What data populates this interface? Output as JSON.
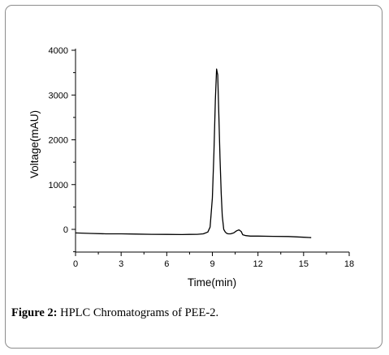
{
  "figure": {
    "caption_label": "Figure 2:",
    "caption_text": " HPLC Chromatograms of PEE-2."
  },
  "chart_data": {
    "type": "line",
    "xlabel": "Time(min)",
    "ylabel": "Voltage(mAU)",
    "xlim": [
      0,
      18
    ],
    "ylim": [
      -500,
      4000
    ],
    "x_ticks": [
      0,
      3,
      6,
      9,
      12,
      15,
      18
    ],
    "y_ticks": [
      0,
      1000,
      2000,
      3000,
      4000
    ],
    "grid": false,
    "series": [
      {
        "color": "#000000",
        "x": [
          0,
          1,
          2,
          3,
          4,
          5,
          6,
          7,
          7.5,
          8,
          8.4,
          8.7,
          8.85,
          9.0,
          9.1,
          9.2,
          9.28,
          9.35,
          9.42,
          9.5,
          9.58,
          9.65,
          9.75,
          9.85,
          9.95,
          10.05,
          10.2,
          10.4,
          10.6,
          10.75,
          10.9,
          11.0,
          11.2,
          11.5,
          12,
          13,
          14,
          15,
          15.5
        ],
        "y": [
          -80,
          -90,
          -100,
          -100,
          -105,
          -110,
          -112,
          -115,
          -112,
          -110,
          -100,
          -60,
          50,
          700,
          1700,
          2900,
          3580,
          3450,
          2600,
          1600,
          800,
          300,
          0,
          -60,
          -90,
          -100,
          -100,
          -80,
          -30,
          -10,
          -50,
          -120,
          -140,
          -150,
          -150,
          -155,
          -160,
          -175,
          -185
        ]
      }
    ]
  }
}
